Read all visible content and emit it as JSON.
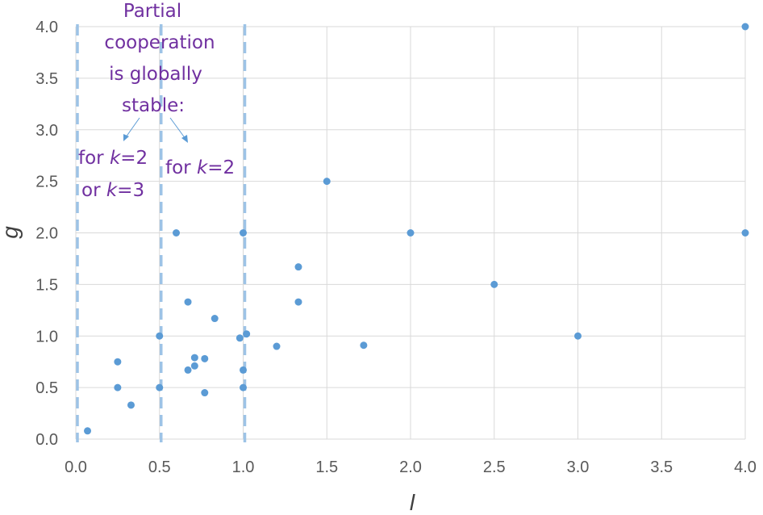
{
  "chart_data": {
    "type": "scatter",
    "title": "",
    "xlabel": "l",
    "ylabel": "g",
    "xlim": [
      0,
      4
    ],
    "ylim": [
      0,
      4
    ],
    "x_ticks": [
      "0.0",
      "0.5",
      "1.0",
      "1.5",
      "2.0",
      "2.5",
      "3.0",
      "3.5",
      "4.0"
    ],
    "y_ticks": [
      "0.0",
      "0.5",
      "1.0",
      "1.5",
      "2.0",
      "2.5",
      "3.0",
      "3.5",
      "4.0"
    ],
    "grid": true,
    "marker_color": "#5b9bd5",
    "reference_line_color": "#9dc3e6",
    "annotation_color": "#7030a0",
    "vertical_reference_lines": [
      0,
      0.5,
      1.0
    ],
    "points": [
      {
        "x": 0.07,
        "y": 0.08
      },
      {
        "x": 0.25,
        "y": 0.75
      },
      {
        "x": 0.25,
        "y": 0.5
      },
      {
        "x": 0.33,
        "y": 0.33
      },
      {
        "x": 0.5,
        "y": 1.0
      },
      {
        "x": 0.5,
        "y": 0.5
      },
      {
        "x": 0.6,
        "y": 2.0
      },
      {
        "x": 0.67,
        "y": 1.33
      },
      {
        "x": 0.67,
        "y": 0.67
      },
      {
        "x": 0.71,
        "y": 0.79
      },
      {
        "x": 0.71,
        "y": 0.71
      },
      {
        "x": 0.77,
        "y": 0.78
      },
      {
        "x": 0.77,
        "y": 0.45
      },
      {
        "x": 0.83,
        "y": 1.17
      },
      {
        "x": 0.98,
        "y": 0.98
      },
      {
        "x": 1.0,
        "y": 2.0
      },
      {
        "x": 1.0,
        "y": 0.67
      },
      {
        "x": 1.0,
        "y": 0.5
      },
      {
        "x": 1.02,
        "y": 1.02
      },
      {
        "x": 1.2,
        "y": 0.9
      },
      {
        "x": 1.33,
        "y": 1.67
      },
      {
        "x": 1.33,
        "y": 1.33
      },
      {
        "x": 1.5,
        "y": 2.5
      },
      {
        "x": 1.72,
        "y": 0.91
      },
      {
        "x": 2.0,
        "y": 2.0
      },
      {
        "x": 2.5,
        "y": 1.5
      },
      {
        "x": 3.0,
        "y": 1.0
      },
      {
        "x": 4.0,
        "y": 4.0
      },
      {
        "x": 4.0,
        "y": 2.0
      }
    ],
    "annotations": {
      "header": [
        "Partial",
        "cooperation",
        "is globally",
        "stable:"
      ],
      "left_label_line1_prefix": "for ",
      "left_label_line1_var": "k",
      "left_label_line1_suffix": "=2",
      "left_label_line2_prefix": "or ",
      "left_label_line2_var": "k",
      "left_label_line2_suffix": "=3",
      "right_label_prefix": "for ",
      "right_label_var": "k",
      "right_label_suffix": "=2"
    }
  }
}
